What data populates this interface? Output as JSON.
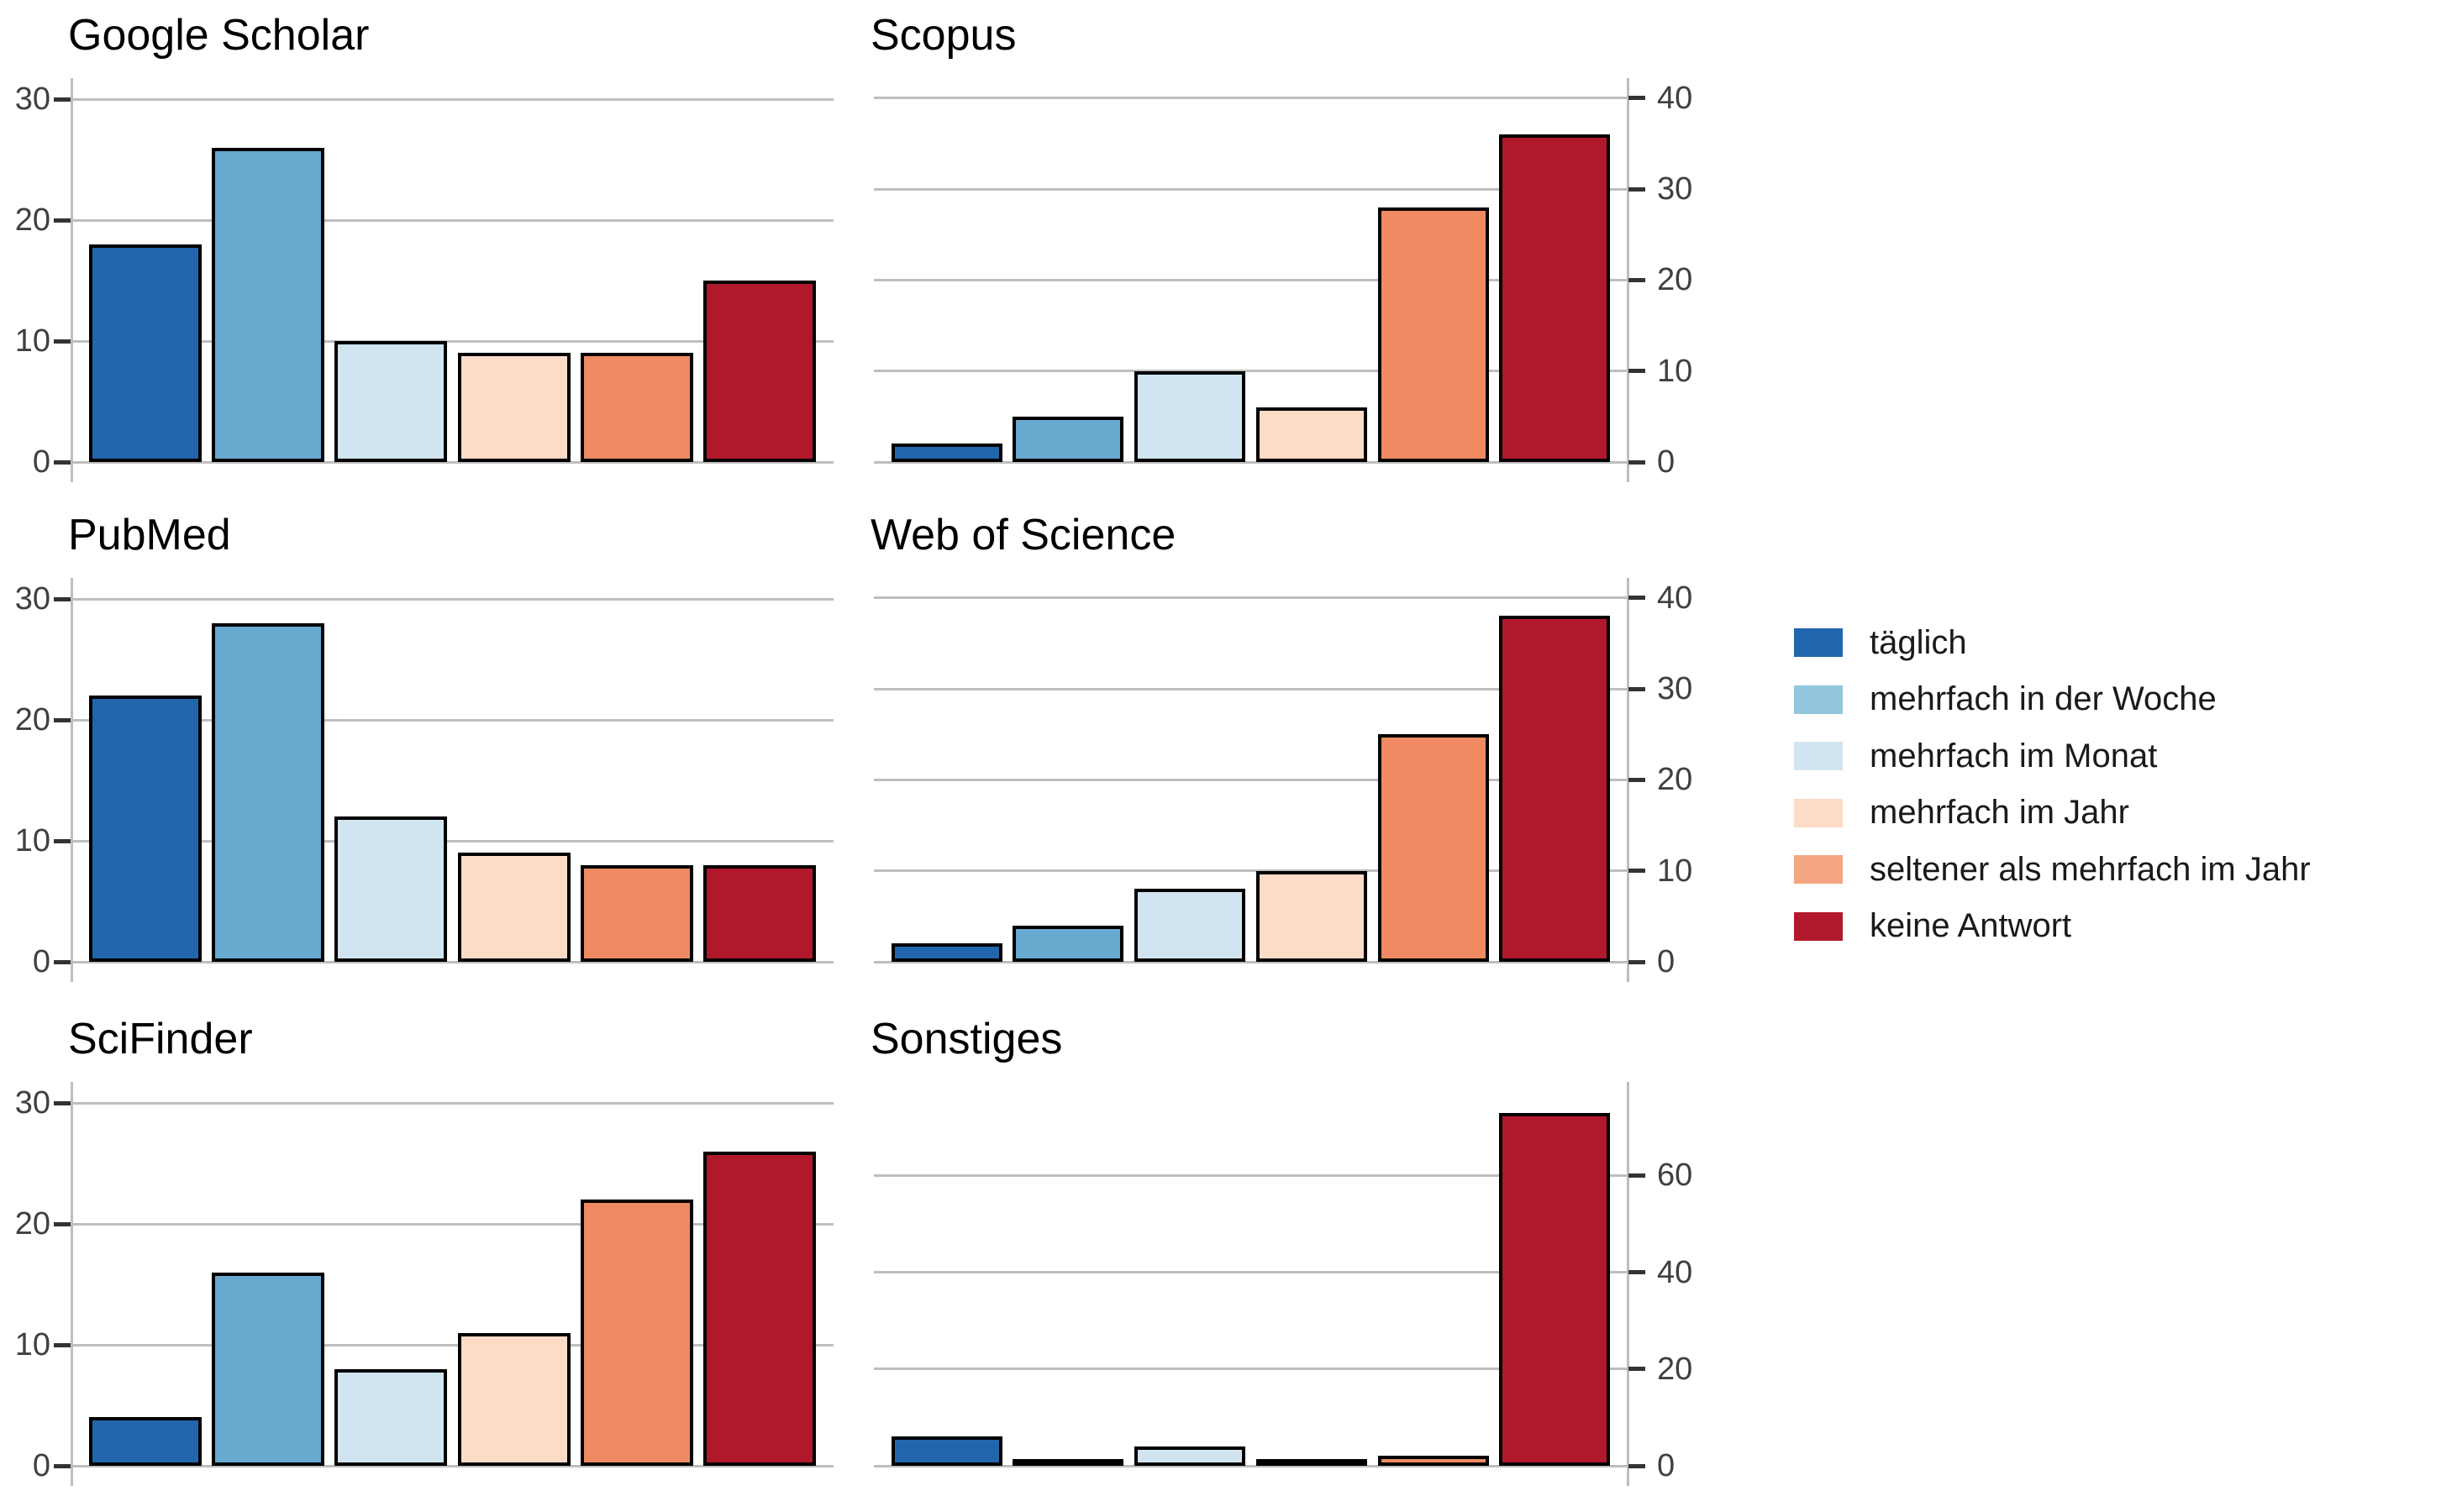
{
  "figure": {
    "background": "#ffffff",
    "gridline_color": "#bebebe",
    "axis_line_color": "#bebebe",
    "tick_mark_color": "#333333",
    "tick_label_color": "#404040",
    "title_color": "#000000",
    "bar_border_color": "#000000"
  },
  "chart_data": [
    {
      "type": "bar",
      "title": "Google Scholar",
      "categories": [
        "täglich",
        "mehrfach in der Woche",
        "mehrfach im Monat",
        "mehrfach im Jahr",
        "seltener als mehrfach im Jahr",
        "keine Antwort"
      ],
      "values": [
        18,
        26,
        10,
        9,
        9,
        15
      ],
      "axis_side": "left",
      "yticks": [
        0,
        10,
        20,
        30
      ],
      "ylim": [
        0,
        31.6
      ],
      "grid": "horizontal"
    },
    {
      "type": "bar",
      "title": "Scopus",
      "categories": [
        "täglich",
        "mehrfach in der Woche",
        "mehrfach im Monat",
        "mehrfach im Jahr",
        "seltener als mehrfach im Jahr",
        "keine Antwort"
      ],
      "values": [
        2,
        5,
        10,
        6,
        28,
        36
      ],
      "axis_side": "right",
      "yticks": [
        0,
        10,
        20,
        30,
        40
      ],
      "ylim": [
        0,
        42
      ],
      "grid": "horizontal"
    },
    {
      "type": "bar",
      "title": "PubMed",
      "categories": [
        "täglich",
        "mehrfach in der Woche",
        "mehrfach im Monat",
        "mehrfach im Jahr",
        "seltener als mehrfach im Jahr",
        "keine Antwort"
      ],
      "values": [
        22,
        28,
        12,
        9,
        8,
        8
      ],
      "axis_side": "left",
      "yticks": [
        0,
        10,
        20,
        30
      ],
      "ylim": [
        0,
        31.6
      ],
      "grid": "horizontal"
    },
    {
      "type": "bar",
      "title": "Web of Science",
      "categories": [
        "täglich",
        "mehrfach in der Woche",
        "mehrfach im Monat",
        "mehrfach im Jahr",
        "seltener als mehrfach im Jahr",
        "keine Antwort"
      ],
      "values": [
        2,
        4,
        8,
        10,
        25,
        38
      ],
      "axis_side": "right",
      "yticks": [
        0,
        10,
        20,
        30,
        40
      ],
      "ylim": [
        0,
        42
      ],
      "grid": "horizontal"
    },
    {
      "type": "bar",
      "title": "SciFinder",
      "categories": [
        "täglich",
        "mehrfach in der Woche",
        "mehrfach im Monat",
        "mehrfach im Jahr",
        "seltener als mehrfach im Jahr",
        "keine Antwort"
      ],
      "values": [
        4,
        16,
        8,
        11,
        22,
        26
      ],
      "axis_side": "left",
      "yticks": [
        0,
        10,
        20,
        30
      ],
      "ylim": [
        0,
        31.6
      ],
      "grid": "horizontal"
    },
    {
      "type": "bar",
      "title": "Sonstiges",
      "categories": [
        "täglich",
        "mehrfach in der Woche",
        "mehrfach im Monat",
        "mehrfach im Jahr",
        "seltener als mehrfach im Jahr",
        "keine Antwort"
      ],
      "values": [
        6,
        1,
        4,
        1,
        2,
        73
      ],
      "axis_side": "right",
      "yticks": [
        0,
        20,
        40,
        60
      ],
      "ylim": [
        0,
        79
      ],
      "grid": "horizontal"
    }
  ],
  "series_colors": [
    "#2166ac",
    "#67a9cf",
    "#d1e5f0",
    "#fddbc7",
    "#ef8a62",
    "#b2182b"
  ],
  "legend": {
    "items": [
      {
        "label": "täglich",
        "color": "#2166ac"
      },
      {
        "label": "mehrfach in der Woche",
        "color": "#92c5de"
      },
      {
        "label": "mehrfach im Monat",
        "color": "#d1e5f0"
      },
      {
        "label": "mehrfach im Jahr",
        "color": "#fddbc7"
      },
      {
        "label": "seltener als mehrfach im Jahr",
        "color": "#f4a582"
      },
      {
        "label": "keine Antwort",
        "color": "#b2182b"
      }
    ]
  }
}
